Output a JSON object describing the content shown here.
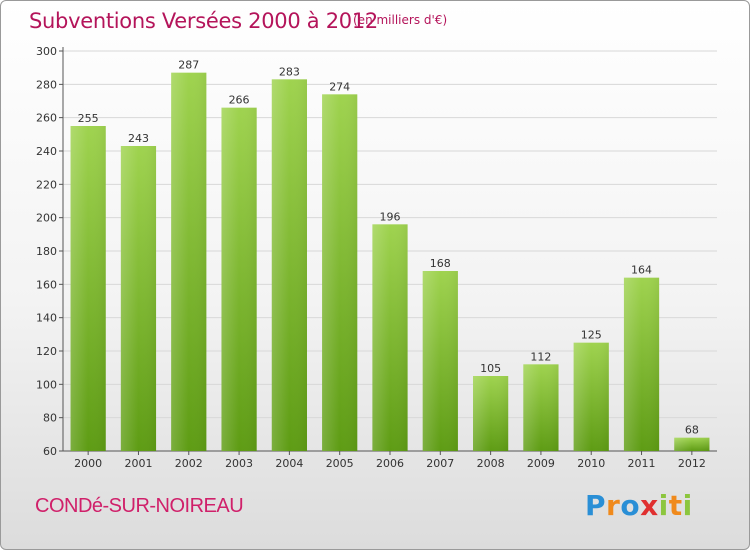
{
  "header": {
    "title": "Subventions Versées 2000 à 2012",
    "subtitle": "(en milliers d'€)"
  },
  "footer": {
    "commune": "CONDé-SUR-NOIREAU",
    "brand": "Proxiti"
  },
  "colors": {
    "bar_top": "#9fd34f",
    "bar_bottom": "#5e9c14",
    "title": "#b4145a",
    "grid": "#d8d8d8"
  },
  "chart_data": {
    "type": "bar",
    "title": "Subventions Versées 2000 à 2012",
    "subtitle": "(en milliers d'€)",
    "categories": [
      "2000",
      "2001",
      "2002",
      "2003",
      "2004",
      "2005",
      "2006",
      "2007",
      "2008",
      "2009",
      "2010",
      "2011",
      "2012"
    ],
    "values": [
      255,
      243,
      287,
      266,
      283,
      274,
      196,
      168,
      105,
      112,
      125,
      164,
      68
    ],
    "ylim": [
      60,
      300
    ],
    "yticks": [
      60,
      80,
      100,
      120,
      140,
      160,
      180,
      200,
      220,
      240,
      260,
      280,
      300
    ],
    "grid": true,
    "data_labels": true
  }
}
